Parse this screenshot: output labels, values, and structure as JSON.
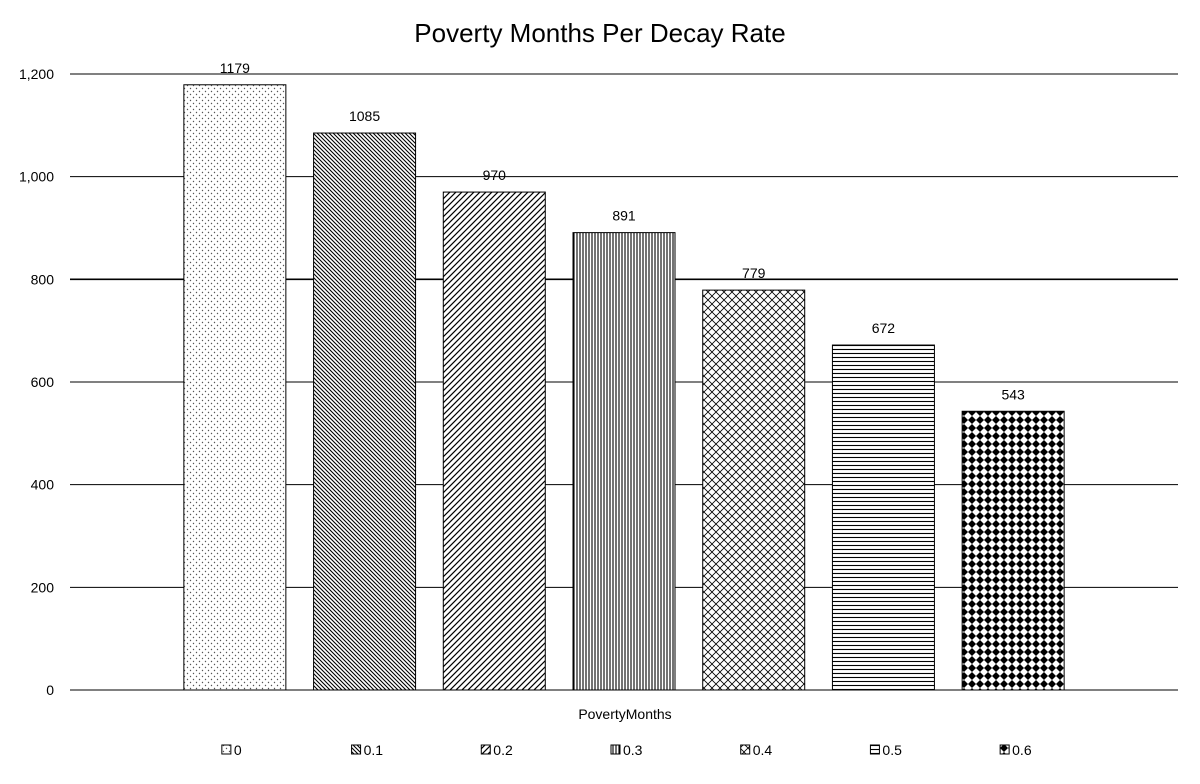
{
  "chart_data": {
    "type": "bar",
    "title": "Poverty Months Per Decay Rate",
    "xlabel": "PovertyMonths",
    "ylabel": "",
    "ylim": [
      0,
      1200
    ],
    "yticks": [
      0,
      200,
      400,
      600,
      800,
      1000,
      1200
    ],
    "ytick_labels": [
      "0",
      "200",
      "400",
      "600",
      "800",
      "1,000",
      "1,200"
    ],
    "grid": true,
    "legend_position": "bottom",
    "series": [
      {
        "name": "0",
        "value": 1179,
        "pattern": "dots"
      },
      {
        "name": "0.1",
        "value": 1085,
        "pattern": "diag-down-dense"
      },
      {
        "name": "0.2",
        "value": 970,
        "pattern": "diag-up"
      },
      {
        "name": "0.3",
        "value": 891,
        "pattern": "vertical"
      },
      {
        "name": "0.4",
        "value": 779,
        "pattern": "diamond-grid"
      },
      {
        "name": "0.5",
        "value": 672,
        "pattern": "horizontal"
      },
      {
        "name": "0.6",
        "value": 543,
        "pattern": "checker-diamond"
      }
    ],
    "colors": {
      "fill": "#ffffff",
      "stroke": "#000000",
      "grid": "#000000"
    }
  }
}
